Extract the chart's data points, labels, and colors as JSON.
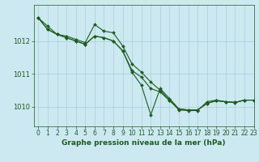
{
  "title": "Graphe pression niveau de la mer (hPa)",
  "bg_color": "#cce8f0",
  "grid_color": "#aaccd8",
  "line_color": "#1e5c1e",
  "marker_color": "#1e5c1e",
  "xlim": [
    -0.5,
    23
  ],
  "ylim": [
    1009.4,
    1013.1
  ],
  "yticks": [
    1010,
    1011,
    1012
  ],
  "xticks": [
    0,
    1,
    2,
    3,
    4,
    5,
    6,
    7,
    8,
    9,
    10,
    11,
    12,
    13,
    14,
    15,
    16,
    17,
    18,
    19,
    20,
    21,
    22,
    23
  ],
  "series": [
    {
      "x": [
        0,
        1,
        2,
        3,
        4,
        5,
        6,
        7,
        8,
        9,
        10,
        11,
        12,
        13,
        14,
        15,
        16,
        17,
        18,
        19,
        20,
        21,
        22,
        23
      ],
      "y": [
        1012.7,
        1012.45,
        1012.2,
        1012.15,
        1012.05,
        1011.95,
        1012.5,
        1012.3,
        1012.25,
        1011.85,
        1011.3,
        1011.05,
        1010.75,
        1010.5,
        1010.2,
        1009.9,
        1009.88,
        1009.88,
        1010.15,
        1010.2,
        1010.15,
        1010.12,
        1010.2,
        1010.2
      ]
    },
    {
      "x": [
        0,
        1,
        2,
        3,
        4,
        5,
        6,
        7,
        8,
        9,
        10,
        11,
        12,
        13,
        14,
        15,
        16,
        17,
        18,
        19,
        20,
        21,
        22,
        23
      ],
      "y": [
        1012.7,
        1012.35,
        1012.2,
        1012.1,
        1012.0,
        1011.9,
        1012.15,
        1012.1,
        1012.0,
        1011.7,
        1011.1,
        1010.9,
        1010.55,
        1010.45,
        1010.18,
        1009.93,
        1009.9,
        1009.9,
        1010.1,
        1010.18,
        1010.15,
        1010.13,
        1010.2,
        1010.2
      ]
    },
    {
      "x": [
        0,
        1,
        2,
        3,
        4,
        5,
        6,
        7,
        8,
        9,
        10,
        11,
        12,
        13,
        14,
        15,
        16,
        17,
        18,
        19,
        20,
        21,
        22,
        23
      ],
      "y": [
        1012.7,
        1012.35,
        1012.2,
        1012.1,
        1012.0,
        1011.9,
        1012.15,
        1012.1,
        1012.0,
        1011.7,
        1011.05,
        1010.65,
        1009.75,
        1010.55,
        1010.25,
        1009.93,
        1009.9,
        1009.9,
        1010.1,
        1010.18,
        1010.15,
        1010.13,
        1010.2,
        1010.2
      ]
    }
  ],
  "xlabel_fontsize": 6.5,
  "tick_fontsize": 5.5,
  "ytick_fontsize": 6.0,
  "linewidth": 0.8,
  "markersize": 2.0
}
